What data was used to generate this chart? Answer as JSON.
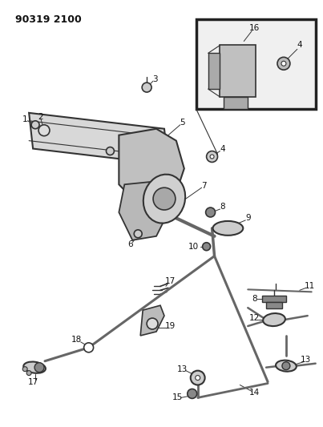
{
  "title": "90319 2100",
  "bg_color": "#ffffff",
  "line_color": "#333333",
  "label_color": "#111111",
  "title_fontsize": 9,
  "label_fontsize": 7.0,
  "fig_width": 4.03,
  "fig_height": 5.33,
  "dpi": 100
}
